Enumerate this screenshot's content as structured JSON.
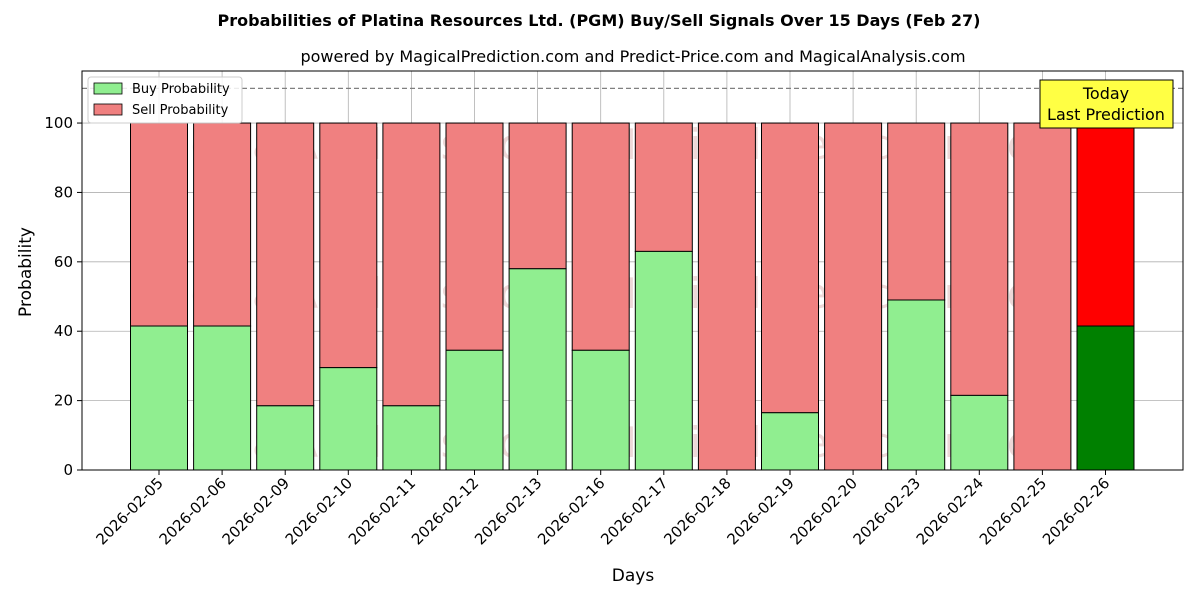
{
  "chart_data": {
    "type": "bar",
    "stacked": true,
    "title": "Probabilities of Platina Resources Ltd. (PGM) Buy/Sell Signals Over 15 Days (Feb 27)",
    "subtitle": "powered by MagicalPrediction.com and Predict-Price.com and MagicalAnalysis.com",
    "xlabel": "Days",
    "ylabel": "Probability",
    "ylim": [
      0,
      115
    ],
    "yticks": [
      0,
      20,
      40,
      60,
      80,
      100
    ],
    "grid": true,
    "legend_position": "top-left",
    "reference_line": 110,
    "categories": [
      "2026-02-05",
      "2026-02-06",
      "2026-02-09",
      "2026-02-10",
      "2026-02-11",
      "2026-02-12",
      "2026-02-13",
      "2026-02-16",
      "2026-02-17",
      "2026-02-18",
      "2026-02-19",
      "2026-02-20",
      "2026-02-23",
      "2026-02-24",
      "2026-02-25",
      "2026-02-26"
    ],
    "series": [
      {
        "name": "Buy Probability",
        "color": "#90ee90",
        "highlight_color": "#008000",
        "values": [
          41.5,
          41.5,
          18.5,
          29.5,
          18.5,
          34.5,
          58,
          34.5,
          63,
          0,
          16.5,
          0,
          49,
          21.5,
          0,
          41.5
        ]
      },
      {
        "name": "Sell Probability",
        "color": "#f08080",
        "highlight_color": "#ff0000",
        "values": [
          58.5,
          58.5,
          81.5,
          70.5,
          81.5,
          65.5,
          42,
          65.5,
          37,
          100,
          83.5,
          100,
          51,
          78.5,
          100,
          58.5
        ]
      }
    ],
    "annotation": {
      "line1": "Today",
      "line2": "Last Prediction",
      "color": "#ffff44"
    },
    "watermarks": [
      "MagicalAnalysis.com",
      "MagicalPrediction.com"
    ]
  }
}
